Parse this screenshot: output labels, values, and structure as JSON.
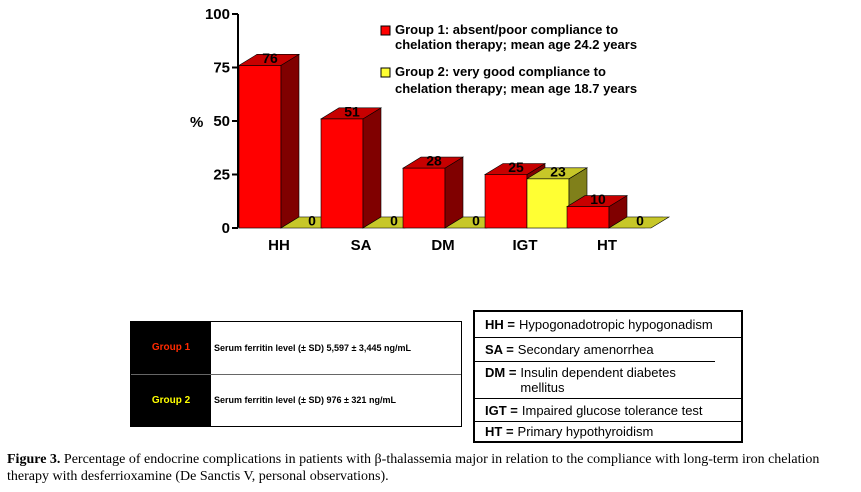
{
  "chart_data": {
    "type": "bar",
    "categories": [
      "HH",
      "SA",
      "DM",
      "IGT",
      "HT"
    ],
    "series": [
      {
        "name": "Group 1: absent/poor compliance to chelation therapy; mean age 24.2 years",
        "values": [
          76,
          51,
          28,
          25,
          10
        ],
        "color": "#ff0000"
      },
      {
        "name": "Group 2: very good compliance to chelation therapy; mean age 18.7 years",
        "values": [
          0,
          0,
          0,
          23,
          0
        ],
        "color": "#ffff33"
      }
    ],
    "ylabel": "%",
    "ylim": [
      0,
      100
    ],
    "yticks": [
      0,
      25,
      50,
      75,
      100
    ],
    "grid": false,
    "legend_position": "top-right",
    "three_d": true
  },
  "legend": {
    "items": [
      {
        "line1": "Group 1: absent/poor compliance to",
        "line2": "chelation therapy; mean age 24.2 years",
        "color": "#ff0000"
      },
      {
        "line1": "Group 2: very good compliance to",
        "line2": "chelation therapy; mean age 18.7 years",
        "color": "#ffff33"
      }
    ]
  },
  "ferritin_table": {
    "rows": [
      {
        "group": "Group 1",
        "text": "Serum ferritin level (± SD) 5,597 ± 3,445 ng/mL"
      },
      {
        "group": "Group 2",
        "text": "Serum ferritin level (± SD)  976 ±  321 ng/mL"
      }
    ]
  },
  "abbreviations": [
    {
      "key": "HH =",
      "def": "Hypogonadotropic hypogonadism"
    },
    {
      "key": "SA =",
      "def": "Secondary amenorrhea"
    },
    {
      "key": "DM =",
      "def": "Insulin dependent diabetes mellitus"
    },
    {
      "key": "IGT =",
      "def": "Impaired glucose tolerance test"
    },
    {
      "key": "HT =",
      "def": "Primary hypothyroidism"
    }
  ],
  "caption": {
    "label": "Figure 3.",
    "text": " Percentage of endocrine complications in patients with β-thalassemia major in relation to the compliance with long-term iron chelation therapy with desferrioxamine (De Sanctis V, personal observations)."
  }
}
